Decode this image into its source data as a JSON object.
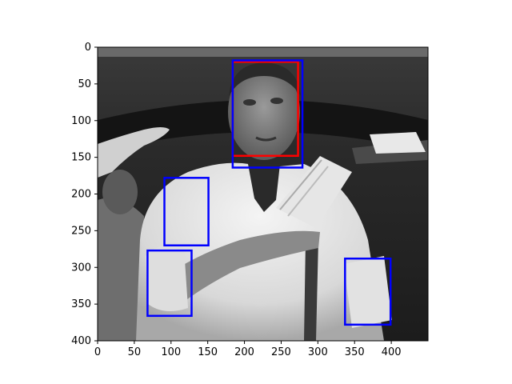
{
  "figure": {
    "image_description": "Grayscale photo of a man in a white lab coat holding papers, with detection bounding boxes overlaid",
    "image_extent": {
      "width": 450,
      "height": 400
    },
    "x_ticks": [
      0,
      50,
      100,
      150,
      200,
      250,
      300,
      350,
      400
    ],
    "y_ticks": [
      0,
      50,
      100,
      150,
      200,
      250,
      300,
      350,
      400
    ],
    "colors": {
      "ground_truth": "#ff0000",
      "detection": "#0000ff",
      "axis": "#000000"
    }
  },
  "boxes": [
    {
      "label": "face-ground-truth",
      "color": "#ff0000",
      "x1": 184,
      "y1": 20,
      "x2": 273,
      "y2": 148
    },
    {
      "label": "face-detection",
      "color": "#0000ff",
      "x1": 184,
      "y1": 18,
      "x2": 279,
      "y2": 164
    },
    {
      "label": "detection-2",
      "color": "#0000ff",
      "x1": 91,
      "y1": 178,
      "x2": 151,
      "y2": 270
    },
    {
      "label": "detection-3",
      "color": "#0000ff",
      "x1": 68,
      "y1": 277,
      "x2": 128,
      "y2": 366
    },
    {
      "label": "detection-4",
      "color": "#0000ff",
      "x1": 337,
      "y1": 288,
      "x2": 399,
      "y2": 378
    }
  ]
}
